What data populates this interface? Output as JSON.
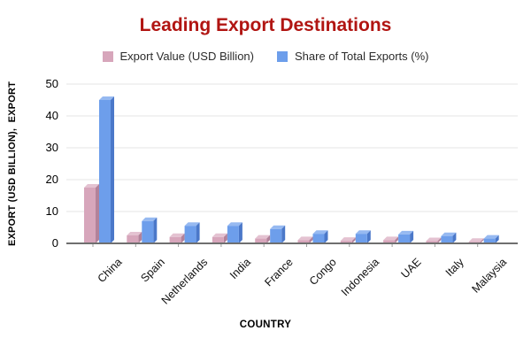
{
  "title": "Leading Export Destinations",
  "title_color": "#b11512",
  "legend": {
    "items": [
      {
        "label": "Export Value (USD Billion)",
        "color": "#d7a6bb"
      },
      {
        "label": "Share of Total Exports (%)",
        "color": "#6d9eeb"
      }
    ]
  },
  "axes": {
    "x_title": "COUNTRY",
    "y_title": "EXPORT (USD BILLION),  EXPORT"
  },
  "colors": {
    "gridline": "#e4e4e4",
    "axis_line": "#6f6f6f",
    "tick_mark": "#9a9a9a",
    "series_front": [
      "#d7a6bb",
      "#6d9eeb"
    ],
    "series_top": [
      "#e4c2d1",
      "#96b9f1"
    ],
    "series_side": [
      "#b2829a",
      "#4b78c9"
    ]
  },
  "chart_data": {
    "type": "bar",
    "title": "Leading Export Destinations",
    "xlabel": "COUNTRY",
    "ylabel": "EXPORT (USD BILLION),  EXPORT",
    "categories": [
      "China",
      "Spain",
      "Netherlands",
      "India",
      "France",
      "Congo",
      "Indonesia",
      "UAE",
      "Italy",
      "Malaysia"
    ],
    "series": [
      {
        "name": "Export Value (USD Billion)",
        "values": [
          17.5,
          2.5,
          2,
          2,
          1.5,
          1,
          0.8,
          1,
          0.7,
          0.5
        ]
      },
      {
        "name": "Share of Total Exports (%)",
        "values": [
          45,
          7,
          5.5,
          5.5,
          4.5,
          3,
          3,
          2.8,
          2.3,
          1.5
        ]
      }
    ],
    "ylim": [
      0,
      50
    ],
    "yticks": [
      0,
      10,
      20,
      30,
      40,
      50
    ],
    "grid": true,
    "legend_position": "top",
    "style": "3d-column"
  }
}
